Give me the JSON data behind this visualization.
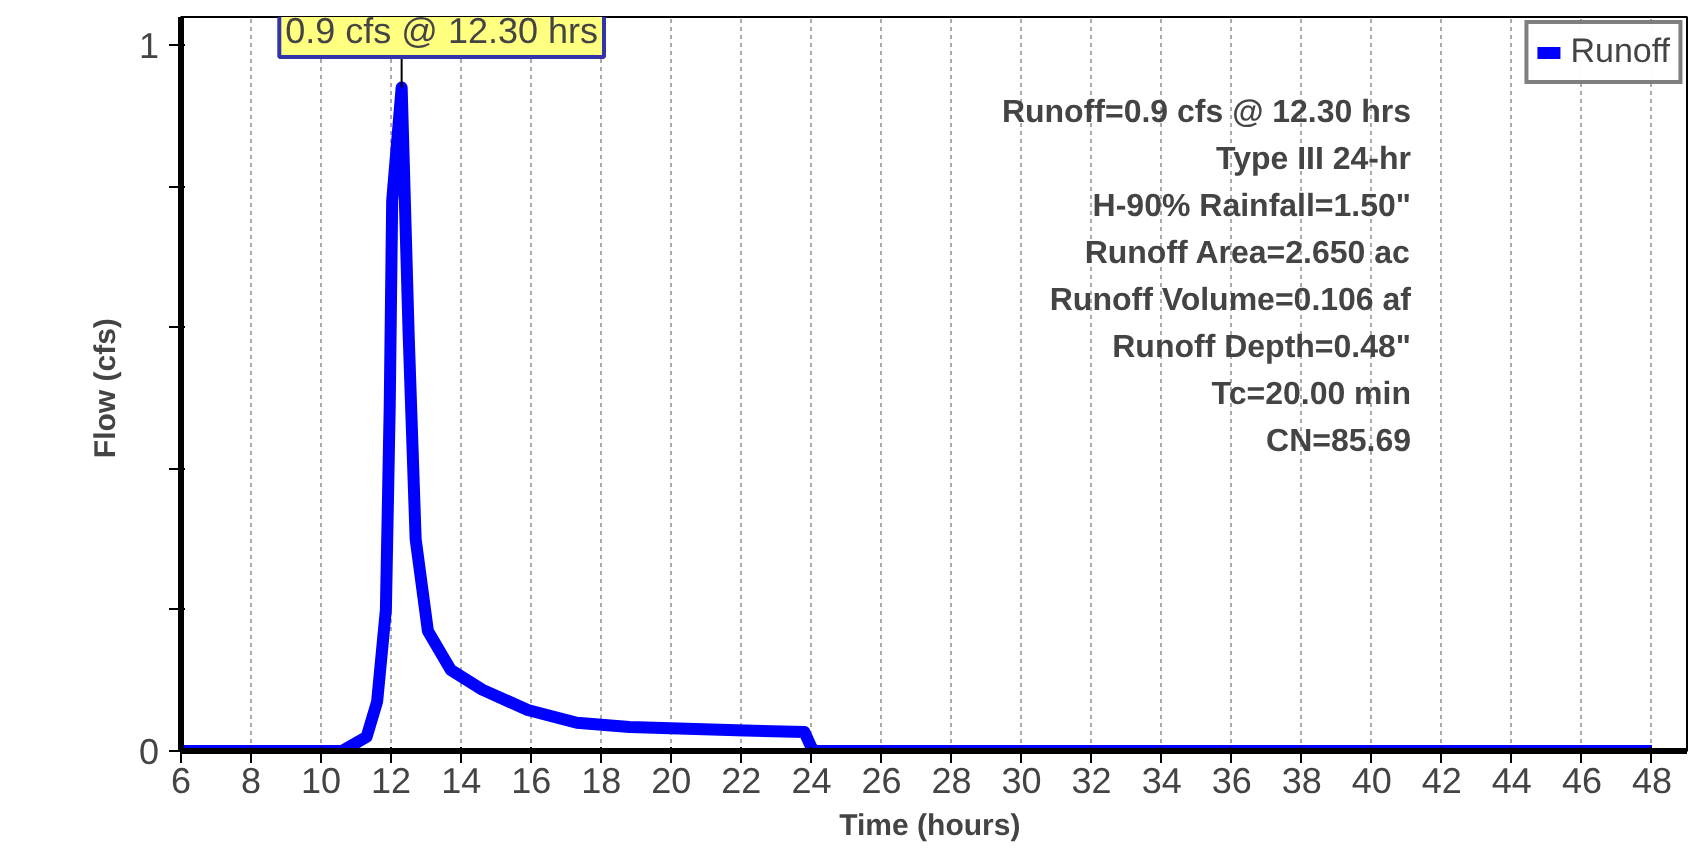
{
  "chart_data": {
    "type": "line",
    "xlabel": "Time  (hours)",
    "ylabel": "Flow  (cfs)",
    "x": [
      6,
      10.6,
      11.3,
      11.6,
      11.85,
      11.96,
      12.03,
      12.3,
      12.5,
      12.7,
      13.05,
      13.7,
      14.6,
      15.9,
      17.3,
      18.8,
      22.1,
      23.8,
      24.0,
      24.1,
      48
    ],
    "series": [
      {
        "name": "Runoff",
        "color": "#0000ff",
        "values": [
          0,
          0,
          0.02,
          0.07,
          0.2,
          0.49,
          0.78,
          0.94,
          0.59,
          0.3,
          0.17,
          0.115,
          0.087,
          0.058,
          0.04,
          0.034,
          0.029,
          0.027,
          0.005,
          0,
          0
        ]
      }
    ],
    "xlim": [
      6,
      49
    ],
    "xticks": [
      6,
      8,
      10,
      12,
      14,
      16,
      18,
      20,
      22,
      24,
      26,
      28,
      30,
      32,
      34,
      36,
      38,
      40,
      42,
      44,
      46,
      48
    ],
    "ylim": [
      0,
      1.04
    ],
    "yticks": [
      0,
      {
        "value": 0.2,
        "label": null
      },
      {
        "value": 0.4,
        "label": null
      },
      {
        "value": 0.6,
        "label": null
      },
      {
        "value": 0.8,
        "label": null
      },
      1
    ],
    "grid": "x",
    "legend": "top right",
    "marker": "none",
    "line_style": "solid",
    "annotations": [
      {
        "text": "0.9 cfs @ 12.30 hrs",
        "x": 12.3,
        "y": 0.94
      },
      "Runoff=0.9 cfs @ 12.30 hrs",
      "Type III 24-hr",
      "H-90% Rainfall=1.50\"",
      "Runoff Area=2.650 ac",
      "Runoff Volume=0.106 af",
      "Runoff Depth=0.48\"",
      "Tc=20.00 min",
      "CN=85.69"
    ]
  }
}
